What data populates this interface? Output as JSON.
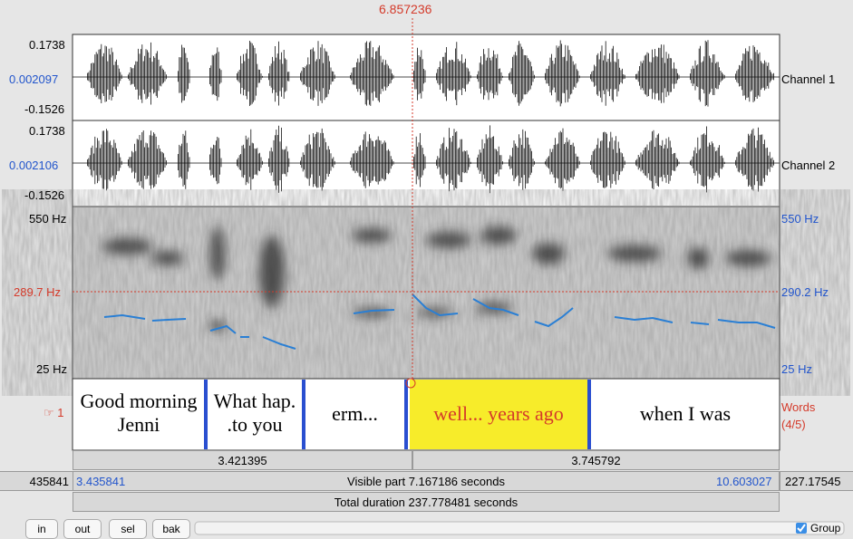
{
  "cursor": "6.857236",
  "channels": [
    {
      "top": "0.1738",
      "mid": "0.002097",
      "bottom": "-0.1526",
      "label": "Channel 1"
    },
    {
      "top": "0.1738",
      "mid": "0.002106",
      "bottom": "-0.1526",
      "label": "Channel 2"
    }
  ],
  "spectrogram": {
    "left": [
      "550 Hz",
      "289.7 Hz",
      "25 Hz"
    ],
    "right": [
      "550 Hz",
      "290.2 Hz",
      "25 Hz"
    ]
  },
  "tier": {
    "marker": "☞ 1",
    "name": [
      "Words",
      "(4/5)"
    ],
    "intervals": [
      [
        "Good morning",
        "Jenni"
      ],
      [
        "What hap.",
        ".to you"
      ],
      [
        "erm..."
      ],
      [
        "well... years ago"
      ],
      [
        "when I was"
      ]
    ]
  },
  "timeline": {
    "segments": [
      "3.421395",
      "3.745792"
    ],
    "left_outer": "435841",
    "left": "3.435841",
    "visible": "Visible part 7.167186 seconds",
    "right": "10.603027",
    "right_outer": "227.17545",
    "total": "Total duration 237.778481 seconds"
  },
  "buttons": [
    "in",
    "out",
    "sel",
    "bak"
  ],
  "group": "Group"
}
